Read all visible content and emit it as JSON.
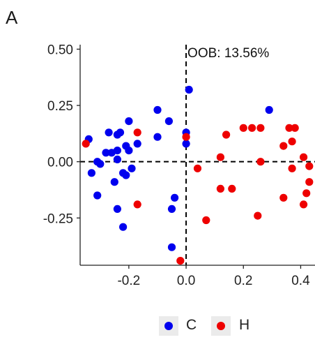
{
  "panel_label": "A",
  "colors": {
    "C": "#0000ee",
    "H": "#ee0000",
    "axis": "#222222",
    "grid": "#000000"
  },
  "chart_data": {
    "type": "scatter",
    "xlim": [
      -0.37,
      0.45
    ],
    "ylim": [
      -0.46,
      0.52
    ],
    "xticks": [
      -0.2,
      0.0,
      0.2,
      0.4
    ],
    "xtick_labels": [
      "-0.2",
      "0.0",
      "0.2",
      "0.4"
    ],
    "yticks": [
      0.5,
      0.25,
      0.0,
      -0.25
    ],
    "ytick_labels": [
      "0.50",
      "0.25",
      "0.00",
      "-0.25"
    ],
    "reference_lines": {
      "x": 0,
      "y": 0,
      "style": "dashed"
    },
    "annotation": "OOB: 13.56%",
    "legend_position": "bottom",
    "series": [
      {
        "name": "C",
        "points": [
          [
            0.01,
            0.32
          ],
          [
            -0.1,
            0.23
          ],
          [
            0.29,
            0.23
          ],
          [
            -0.2,
            0.18
          ],
          [
            -0.06,
            0.18
          ],
          [
            -0.34,
            0.1
          ],
          [
            -0.27,
            0.13
          ],
          [
            -0.24,
            0.12
          ],
          [
            -0.23,
            0.13
          ],
          [
            -0.1,
            0.11
          ],
          [
            0.0,
            0.13
          ],
          [
            -0.31,
            0.0
          ],
          [
            -0.28,
            0.04
          ],
          [
            -0.26,
            0.04
          ],
          [
            -0.24,
            0.05
          ],
          [
            -0.21,
            0.07
          ],
          [
            -0.2,
            0.05
          ],
          [
            -0.3,
            -0.01
          ],
          [
            -0.33,
            -0.05
          ],
          [
            -0.24,
            0.01
          ],
          [
            -0.19,
            -0.03
          ],
          [
            -0.22,
            -0.05
          ],
          [
            -0.21,
            -0.06
          ],
          [
            -0.17,
            0.08
          ],
          [
            0.0,
            0.08
          ],
          [
            -0.25,
            -0.09
          ],
          [
            -0.31,
            -0.15
          ],
          [
            -0.24,
            -0.21
          ],
          [
            -0.22,
            -0.29
          ],
          [
            -0.04,
            -0.16
          ],
          [
            -0.05,
            -0.21
          ],
          [
            -0.05,
            -0.38
          ]
        ]
      },
      {
        "name": "H",
        "points": [
          [
            -0.35,
            0.08
          ],
          [
            -0.17,
            0.13
          ],
          [
            0.0,
            0.11
          ],
          [
            0.14,
            0.12
          ],
          [
            0.2,
            0.15
          ],
          [
            0.23,
            0.15
          ],
          [
            0.26,
            0.15
          ],
          [
            0.36,
            0.15
          ],
          [
            0.38,
            0.15
          ],
          [
            0.37,
            0.09
          ],
          [
            0.34,
            0.07
          ],
          [
            0.41,
            0.02
          ],
          [
            0.12,
            0.02
          ],
          [
            0.26,
            0.0
          ],
          [
            0.43,
            -0.02
          ],
          [
            0.04,
            -0.03
          ],
          [
            0.37,
            -0.03
          ],
          [
            0.43,
            -0.09
          ],
          [
            0.12,
            -0.12
          ],
          [
            0.16,
            -0.12
          ],
          [
            0.42,
            -0.14
          ],
          [
            0.34,
            -0.16
          ],
          [
            0.41,
            -0.19
          ],
          [
            -0.17,
            -0.19
          ],
          [
            0.25,
            -0.24
          ],
          [
            0.07,
            -0.26
          ],
          [
            -0.02,
            -0.44
          ]
        ]
      }
    ]
  }
}
